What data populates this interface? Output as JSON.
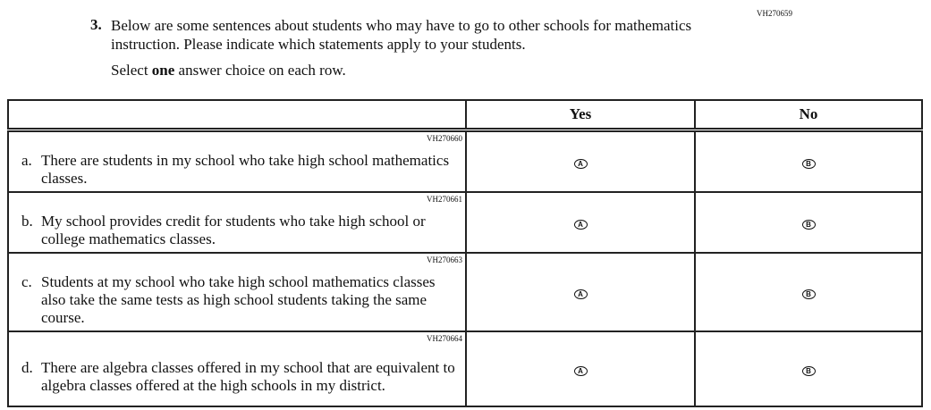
{
  "question": {
    "code": "VH270659",
    "number": "3.",
    "text": "Below are some sentences about students who may have to go to other schools for mathematics instruction. Please indicate which statements apply to your students.",
    "instruction_pre": "Select ",
    "instruction_bold": "one",
    "instruction_post": " answer choice on each row."
  },
  "table": {
    "columns": [
      "",
      "Yes",
      "No"
    ],
    "rows": [
      {
        "code": "VH270660",
        "letter": "a.",
        "text": "There are students in my school who take high school mathematics classes.",
        "yes": "A",
        "no": "B"
      },
      {
        "code": "VH270661",
        "letter": "b.",
        "text": "My school provides credit for students who take high school or college mathematics classes.",
        "yes": "A",
        "no": "B"
      },
      {
        "code": "VH270663",
        "letter": "c.",
        "text": "Students at my school who take high school mathematics classes also take the same tests as high school students taking the same course.",
        "yes": "A",
        "no": "B"
      },
      {
        "code": "VH270664",
        "letter": "d.",
        "text": "There are algebra classes offered in my school that are equivalent to algebra classes offered at the high schools in my district.",
        "yes": "A",
        "no": "B"
      }
    ]
  }
}
